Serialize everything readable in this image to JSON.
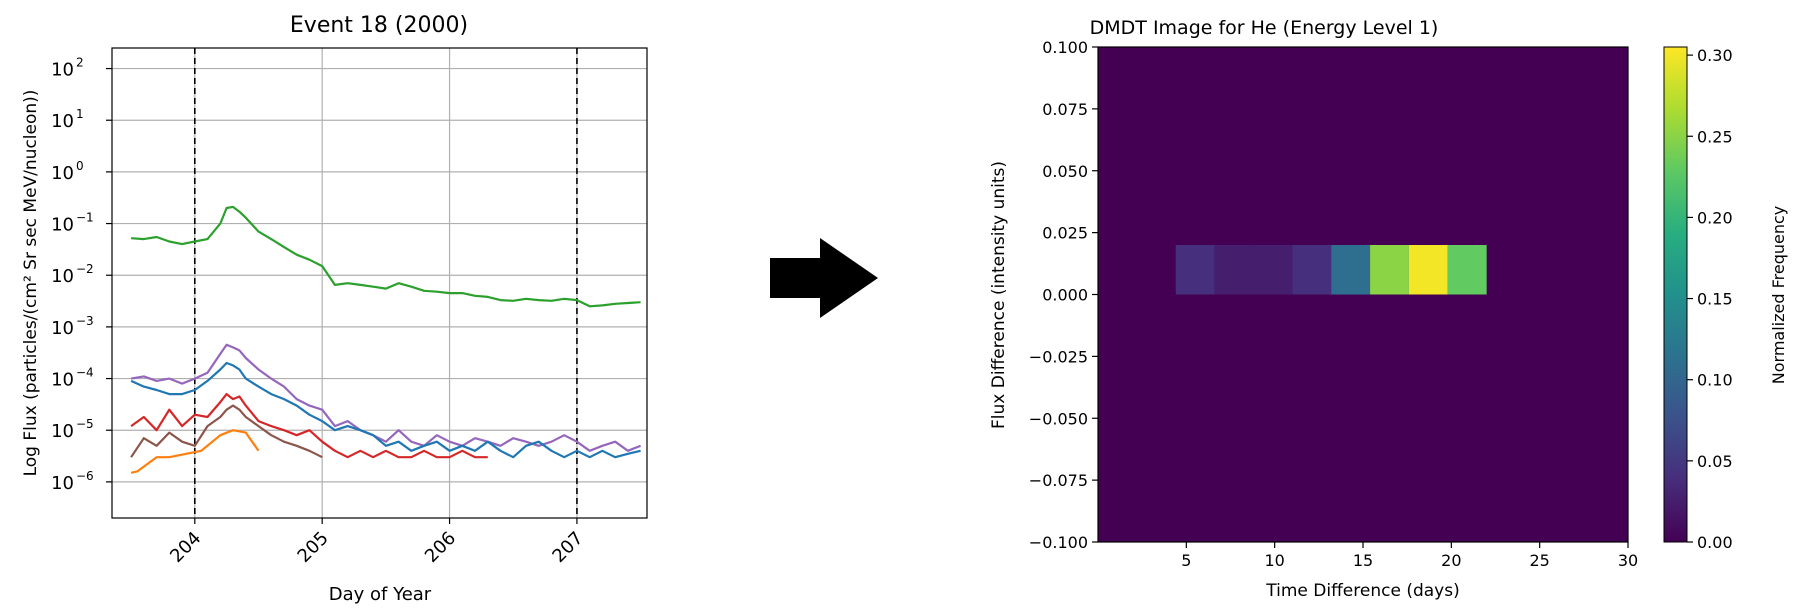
{
  "chart_data": [
    {
      "type": "line",
      "title": "Event 18 (2000)",
      "xlabel": "Day of Year",
      "ylabel": "Log Flux (particles/(cm² Sr sec MeV/nucleon))",
      "yscale": "log",
      "xlim": [
        203.35,
        207.55
      ],
      "ylim": [
        2e-07,
        250
      ],
      "xticks": [
        204,
        205,
        206,
        207
      ],
      "xticklabels": [
        "204",
        "205",
        "206",
        "207"
      ],
      "yticks": [
        1e-06,
        1e-05,
        0.0001,
        0.001,
        0.01,
        0.1,
        1,
        10,
        100
      ],
      "yticklabels": [
        "10",
        "10",
        "10",
        "10",
        "10",
        "10",
        "10",
        "10",
        "10"
      ],
      "ytickexponents": [
        "−6",
        "−5",
        "−4",
        "−3",
        "−2",
        "−1",
        "0",
        "1",
        "2"
      ],
      "grid": true,
      "vlines": [
        204.0,
        207.0
      ],
      "series": [
        {
          "color": "#2ca02c",
          "x": [
            203.5,
            203.6,
            203.7,
            203.8,
            203.9,
            204.0,
            204.1,
            204.2,
            204.25,
            204.3,
            204.35,
            204.4,
            204.5,
            204.6,
            204.7,
            204.8,
            204.9,
            205.0,
            205.1,
            205.2,
            205.3,
            205.4,
            205.5,
            205.6,
            205.7,
            205.8,
            205.9,
            206.0,
            206.1,
            206.2,
            206.3,
            206.4,
            206.5,
            206.6,
            206.7,
            206.8,
            206.9,
            207.0,
            207.1,
            207.2,
            207.3,
            207.4,
            207.5
          ],
          "y": [
            0.052,
            0.05,
            0.055,
            0.045,
            0.04,
            0.045,
            0.05,
            0.1,
            0.2,
            0.21,
            0.17,
            0.13,
            0.07,
            0.05,
            0.035,
            0.025,
            0.02,
            0.015,
            0.0065,
            0.007,
            0.0065,
            0.006,
            0.0055,
            0.007,
            0.006,
            0.005,
            0.0048,
            0.0045,
            0.0045,
            0.004,
            0.0038,
            0.0033,
            0.0032,
            0.0035,
            0.0033,
            0.0032,
            0.0035,
            0.0033,
            0.0025,
            0.0026,
            0.0028,
            0.0029,
            0.003
          ]
        },
        {
          "color": "#9467bd",
          "x": [
            203.5,
            203.6,
            203.7,
            203.8,
            203.9,
            204.0,
            204.1,
            204.2,
            204.25,
            204.3,
            204.35,
            204.4,
            204.5,
            204.6,
            204.7,
            204.8,
            204.9,
            205.0,
            205.1,
            205.2,
            205.3,
            205.4,
            205.5,
            205.6,
            205.7,
            205.8,
            205.9,
            206.0,
            206.1,
            206.2,
            206.3,
            206.4,
            206.5,
            206.6,
            206.7,
            206.8,
            206.9,
            207.0,
            207.1,
            207.2,
            207.3,
            207.4,
            207.5
          ],
          "y": [
            0.0001,
            0.00011,
            9e-05,
            0.0001,
            8e-05,
            0.0001,
            0.00013,
            0.0003,
            0.00045,
            0.0004,
            0.00035,
            0.00025,
            0.00015,
            0.0001,
            7e-05,
            4e-05,
            3e-05,
            2.5e-05,
            1.2e-05,
            1.5e-05,
            1e-05,
            8e-06,
            6e-06,
            1e-05,
            6e-06,
            5e-06,
            8e-06,
            6e-06,
            5e-06,
            7e-06,
            6e-06,
            5e-06,
            7e-06,
            6e-06,
            5e-06,
            6e-06,
            8e-06,
            6e-06,
            4e-06,
            5e-06,
            6e-06,
            4e-06,
            5e-06
          ]
        },
        {
          "color": "#1f77b4",
          "x": [
            203.5,
            203.6,
            203.7,
            203.8,
            203.9,
            204.0,
            204.1,
            204.2,
            204.25,
            204.3,
            204.35,
            204.4,
            204.5,
            204.6,
            204.7,
            204.8,
            204.9,
            205.0,
            205.1,
            205.2,
            205.3,
            205.4,
            205.5,
            205.6,
            205.7,
            205.8,
            205.9,
            206.0,
            206.1,
            206.2,
            206.3,
            206.4,
            206.5,
            206.6,
            206.7,
            206.8,
            206.9,
            207.0,
            207.1,
            207.2,
            207.3,
            207.4,
            207.5
          ],
          "y": [
            9e-05,
            7e-05,
            6e-05,
            5e-05,
            5e-05,
            6e-05,
            9e-05,
            0.00015,
            0.0002,
            0.00018,
            0.00015,
            0.0001,
            7e-05,
            5e-05,
            4e-05,
            3e-05,
            2e-05,
            1.5e-05,
            1e-05,
            1.2e-05,
            1e-05,
            8e-06,
            5e-06,
            6e-06,
            4e-06,
            5e-06,
            6e-06,
            4e-06,
            5e-06,
            4e-06,
            6e-06,
            4e-06,
            3e-06,
            5e-06,
            6e-06,
            4e-06,
            3e-06,
            4e-06,
            3e-06,
            4e-06,
            3e-06,
            3.5e-06,
            4e-06
          ]
        },
        {
          "color": "#d62728",
          "x": [
            203.5,
            203.6,
            203.7,
            203.8,
            203.9,
            204.0,
            204.1,
            204.2,
            204.25,
            204.3,
            204.35,
            204.4,
            204.5,
            204.6,
            204.7,
            204.8,
            204.9,
            205.0,
            205.1,
            205.2,
            205.3,
            205.4,
            205.5,
            205.6,
            205.7,
            205.8,
            205.9,
            206.0,
            206.1,
            206.2,
            206.3
          ],
          "y": [
            1.2e-05,
            1.8e-05,
            1e-05,
            2.5e-05,
            1.2e-05,
            2e-05,
            1.8e-05,
            3.5e-05,
            5e-05,
            4e-05,
            4.5e-05,
            3e-05,
            1.5e-05,
            1.2e-05,
            1e-05,
            8e-06,
            1e-05,
            6e-06,
            4e-06,
            3e-06,
            4e-06,
            3e-06,
            4e-06,
            3e-06,
            3e-06,
            4e-06,
            3e-06,
            3e-06,
            4e-06,
            3e-06,
            3e-06
          ]
        },
        {
          "color": "#8c564b",
          "x": [
            203.5,
            203.6,
            203.7,
            203.8,
            203.9,
            204.0,
            204.1,
            204.2,
            204.25,
            204.3,
            204.35,
            204.4,
            204.5,
            204.6,
            204.7,
            204.8,
            204.9,
            205.0
          ],
          "y": [
            3e-06,
            7e-06,
            5e-06,
            9e-06,
            6e-06,
            5e-06,
            1.2e-05,
            1.8e-05,
            2.5e-05,
            3e-05,
            2.5e-05,
            1.8e-05,
            1.2e-05,
            8e-06,
            6e-06,
            5e-06,
            4e-06,
            3e-06
          ]
        },
        {
          "color": "#ff7f0e",
          "x": [
            203.5,
            203.55,
            203.7,
            203.8,
            204.05,
            204.2,
            204.3,
            204.4,
            204.5
          ],
          "y": [
            1.5e-06,
            1.6e-06,
            3e-06,
            3e-06,
            4e-06,
            8e-06,
            1e-05,
            9e-06,
            4e-06
          ]
        }
      ]
    },
    {
      "type": "heatmap",
      "title": "DMDT Image for He (Energy Level 1)",
      "xlabel": "Time Difference (days)",
      "ylabel": "Flux Difference (intensity units)",
      "xlim": [
        0,
        30
      ],
      "ylim": [
        -0.1,
        0.1
      ],
      "xticks": [
        5,
        10,
        15,
        20,
        25,
        30
      ],
      "yticks": [
        0.1,
        0.075,
        0.05,
        0.025,
        0.0,
        -0.025,
        -0.05,
        -0.075,
        -0.1
      ],
      "yticklabels": [
        "0.100",
        "0.075",
        "0.050",
        "0.025",
        "0.000",
        "−0.025",
        "−0.050",
        "−0.075",
        "−0.100"
      ],
      "colormap": "viridis",
      "background_value": 0.0,
      "cells": [
        {
          "x0": 4.4,
          "x1": 6.6,
          "y0": 0.0,
          "y1": 0.02,
          "value": 0.04
        },
        {
          "x0": 6.6,
          "x1": 8.8,
          "y0": 0.0,
          "y1": 0.02,
          "value": 0.025
        },
        {
          "x0": 8.8,
          "x1": 11.0,
          "y0": 0.0,
          "y1": 0.02,
          "value": 0.025
        },
        {
          "x0": 11.0,
          "x1": 13.2,
          "y0": 0.0,
          "y1": 0.02,
          "value": 0.04
        },
        {
          "x0": 13.2,
          "x1": 15.4,
          "y0": 0.0,
          "y1": 0.02,
          "value": 0.11
        },
        {
          "x0": 15.4,
          "x1": 17.6,
          "y0": 0.0,
          "y1": 0.02,
          "value": 0.25
        },
        {
          "x0": 17.6,
          "x1": 19.8,
          "y0": 0.0,
          "y1": 0.02,
          "value": 0.3
        },
        {
          "x0": 19.8,
          "x1": 22.0,
          "y0": 0.0,
          "y1": 0.02,
          "value": 0.23
        }
      ],
      "colorbar": {
        "label": "Normalized Frequency",
        "range": [
          0.0,
          0.305
        ],
        "ticks": [
          0.0,
          0.05,
          0.1,
          0.15,
          0.2,
          0.25,
          0.3
        ],
        "ticklabels": [
          "0.00",
          "0.05",
          "0.10",
          "0.15",
          "0.20",
          "0.25",
          "0.30"
        ]
      }
    }
  ],
  "arrow": {
    "color": "#000000"
  }
}
